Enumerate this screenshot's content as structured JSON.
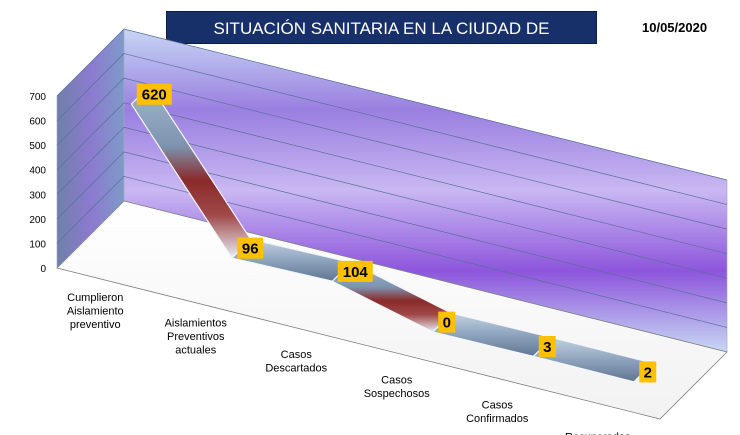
{
  "header": {
    "title": "SITUACIÓN SANITARIA EN LA CIUDAD DE OLAVARRÍA",
    "date": "10/05/2020"
  },
  "chart_data": {
    "type": "line",
    "style": "3d-ribbon",
    "title": "SITUACIÓN SANITARIA EN LA CIUDAD DE OLAVARRÍA",
    "categories": [
      [
        "Cumplieron",
        "Aislamiento",
        "preventivo"
      ],
      [
        "Aislamientos",
        "Preventivos",
        "actuales"
      ],
      [
        "Casos",
        "Descartados"
      ],
      [
        "Casos",
        "Sospechosos"
      ],
      [
        "Casos",
        "Confirmados"
      ],
      [
        "Recuperados"
      ]
    ],
    "values": [
      620,
      96,
      104,
      0,
      3,
      2
    ],
    "ylim": [
      0,
      700
    ],
    "yticks": [
      0,
      100,
      200,
      300,
      400,
      500,
      600,
      700
    ],
    "grid": true,
    "legend": "none",
    "colors": {
      "ribbon": "#8fa6bf",
      "ribbon_dark": "#8a2020",
      "label_bg": "#ffc000",
      "wall_light": "#b9cdf2",
      "wall_dark": "#8a58d8",
      "title_bg": "#17306a"
    }
  }
}
